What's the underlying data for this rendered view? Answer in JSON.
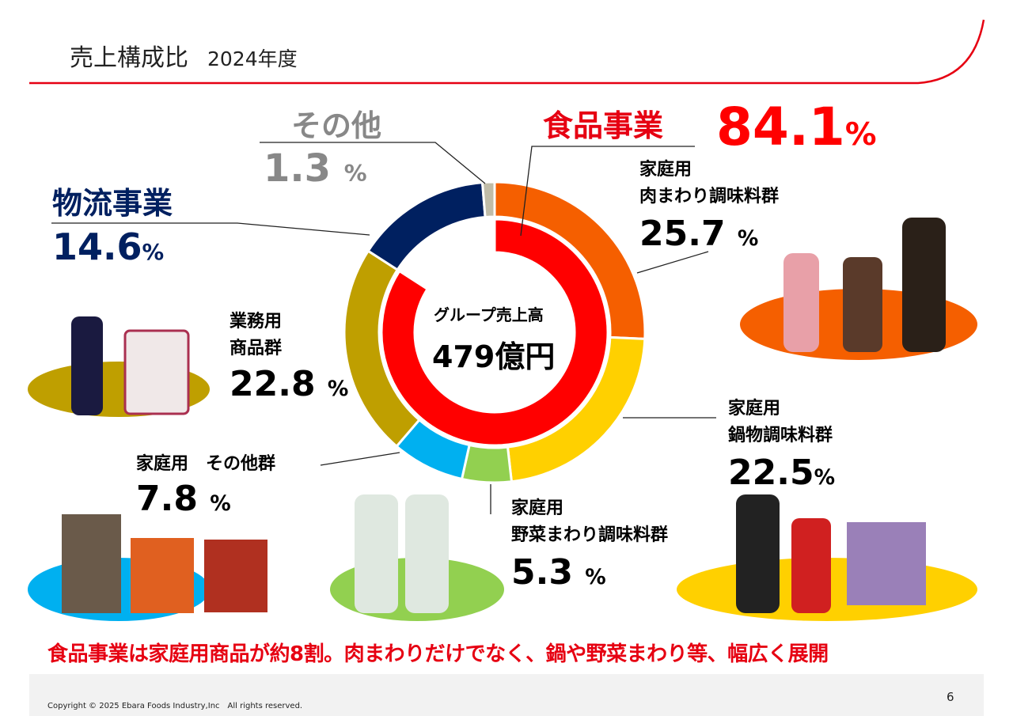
{
  "header": {
    "title": "売上構成比",
    "fiscal_year": "2024年度"
  },
  "chart_data": {
    "type": "pie",
    "subtype": "double-donut",
    "center_label": "グループ売上高",
    "center_value": "479億円",
    "outer": [
      {
        "name": "家庭用 肉まわり調味料群",
        "value": 25.7,
        "color": "#F55F00"
      },
      {
        "name": "家庭用 鍋物調味料群",
        "value": 22.5,
        "color": "#FFD000"
      },
      {
        "name": "家庭用 野菜まわり調味料群",
        "value": 5.3,
        "color": "#92D050"
      },
      {
        "name": "家庭用 その他群",
        "value": 7.8,
        "color": "#00B0F0"
      },
      {
        "name": "業務用 商品群",
        "value": 22.8,
        "color": "#BF9F00"
      },
      {
        "name": "物流事業",
        "value": 14.6,
        "color": "#002060"
      },
      {
        "name": "その他",
        "value": 1.3,
        "color": "#C0BCA8"
      }
    ],
    "inner": [
      {
        "name": "食品事業",
        "value": 84.1,
        "color": "#FF0000"
      }
    ]
  },
  "labels": {
    "food": {
      "name": "食品事業",
      "value": "84.1",
      "unit": "%"
    },
    "other": {
      "name": "その他",
      "value": "1.3",
      "unit": "%"
    },
    "logistics": {
      "name": "物流事業",
      "value": "14.6",
      "unit": "%"
    },
    "meat": {
      "line1": "家庭用",
      "line2": "肉まわり調味料群",
      "value": "25.7",
      "unit": "%"
    },
    "nabe": {
      "line1": "家庭用",
      "line2": "鍋物調味料群",
      "value": "22.5",
      "unit": "%"
    },
    "veg": {
      "line1": "家庭用",
      "line2": "野菜まわり調味料群",
      "value": "5.3",
      "unit": "%"
    },
    "home_other": {
      "line1": "家庭用　その他群",
      "value": "7.8",
      "unit": "%"
    },
    "business": {
      "line1": "業務用",
      "line2": "商品群",
      "value": "22.8",
      "unit": "%"
    }
  },
  "message": "食品事業は家庭用商品が約8割。肉まわりだけでなく、鍋や野菜まわり等、幅広く展開",
  "footer": {
    "copyright": "Copyright © 2025 Ebara Foods Industry,Inc　All rights reserved.",
    "page": "6"
  }
}
